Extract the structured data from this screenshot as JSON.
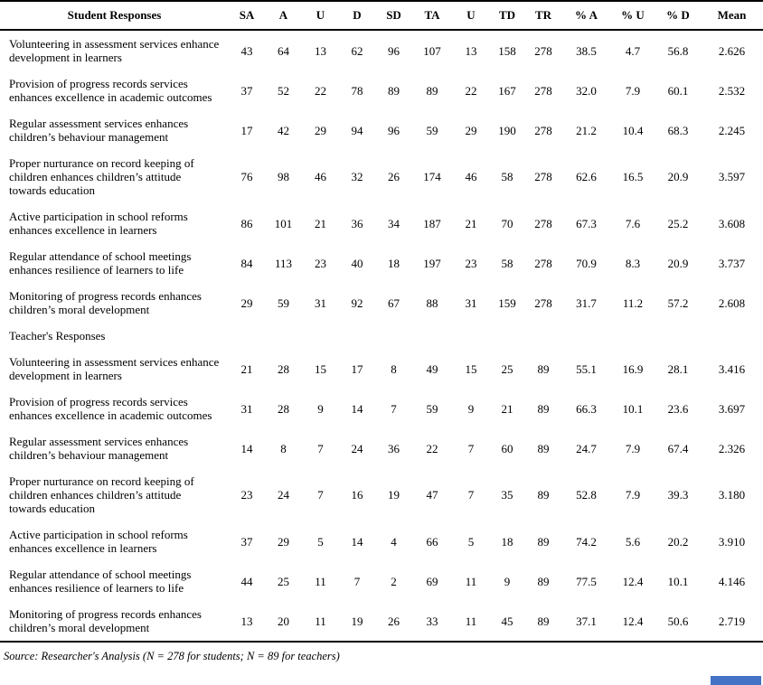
{
  "table": {
    "columns": [
      "Student Responses",
      "SA",
      "A",
      "U",
      "D",
      "SD",
      "TA",
      "U",
      "TD",
      "TR",
      "% A",
      "% U",
      "% D",
      "Mean"
    ],
    "rows": [
      {
        "type": "data",
        "statement": "Volunteering in assessment services enhance development in learners",
        "values": [
          "43",
          "64",
          "13",
          "62",
          "96",
          "107",
          "13",
          "158",
          "278",
          "38.5",
          "4.7",
          "56.8",
          "2.626"
        ]
      },
      {
        "type": "data",
        "statement": "Provision of progress records services enhances excellence in academic outcomes",
        "values": [
          "37",
          "52",
          "22",
          "78",
          "89",
          "89",
          "22",
          "167",
          "278",
          "32.0",
          "7.9",
          "60.1",
          "2.532"
        ]
      },
      {
        "type": "data",
        "statement": "Regular assessment services enhances children’s behaviour management",
        "values": [
          "17",
          "42",
          "29",
          "94",
          "96",
          "59",
          "29",
          "190",
          "278",
          "21.2",
          "10.4",
          "68.3",
          "2.245"
        ]
      },
      {
        "type": "data",
        "statement": "Proper nurturance on record keeping of children enhances children’s attitude towards education",
        "values": [
          "76",
          "98",
          "46",
          "32",
          "26",
          "174",
          "46",
          "58",
          "278",
          "62.6",
          "16.5",
          "20.9",
          "3.597"
        ]
      },
      {
        "type": "data",
        "statement": "Active participation in school reforms enhances excellence in learners",
        "values": [
          "86",
          "101",
          "21",
          "36",
          "34",
          "187",
          "21",
          "70",
          "278",
          "67.3",
          "7.6",
          "25.2",
          "3.608"
        ]
      },
      {
        "type": "data",
        "statement": "Regular attendance of school meetings enhances resilience of learners to life",
        "values": [
          "84",
          "113",
          "23",
          "40",
          "18",
          "197",
          "23",
          "58",
          "278",
          "70.9",
          "8.3",
          "20.9",
          "3.737"
        ]
      },
      {
        "type": "data",
        "statement": "Monitoring of progress records enhances children’s moral development",
        "values": [
          "29",
          "59",
          "31",
          "92",
          "67",
          "88",
          "31",
          "159",
          "278",
          "31.7",
          "11.2",
          "57.2",
          "2.608"
        ]
      },
      {
        "type": "section",
        "label": "Teacher's Responses"
      },
      {
        "type": "data",
        "statement": "Volunteering in assessment services enhance development in learners",
        "values": [
          "21",
          "28",
          "15",
          "17",
          "8",
          "49",
          "15",
          "25",
          "89",
          "55.1",
          "16.9",
          "28.1",
          "3.416"
        ]
      },
      {
        "type": "data",
        "statement": "Provision of progress records services enhances excellence in academic outcomes",
        "values": [
          "31",
          "28",
          "9",
          "14",
          "7",
          "59",
          "9",
          "21",
          "89",
          "66.3",
          "10.1",
          "23.6",
          "3.697"
        ]
      },
      {
        "type": "data",
        "statement": "Regular assessment services enhances children’s behaviour management",
        "values": [
          "14",
          "8",
          "7",
          "24",
          "36",
          "22",
          "7",
          "60",
          "89",
          "24.7",
          "7.9",
          "67.4",
          "2.326"
        ]
      },
      {
        "type": "data",
        "statement": "Proper nurturance on record keeping of children enhances children’s attitude towards education",
        "values": [
          "23",
          "24",
          "7",
          "16",
          "19",
          "47",
          "7",
          "35",
          "89",
          "52.8",
          "7.9",
          "39.3",
          "3.180"
        ]
      },
      {
        "type": "data",
        "statement": "Active participation in school reforms enhances excellence in learners",
        "values": [
          "37",
          "29",
          "5",
          "14",
          "4",
          "66",
          "5",
          "18",
          "89",
          "74.2",
          "5.6",
          "20.2",
          "3.910"
        ]
      },
      {
        "type": "data",
        "statement": "Regular attendance of school meetings enhances resilience of learners to life",
        "values": [
          "44",
          "25",
          "11",
          "7",
          "2",
          "69",
          "11",
          "9",
          "89",
          "77.5",
          "12.4",
          "10.1",
          "4.146"
        ]
      },
      {
        "type": "data",
        "statement": "Monitoring of progress records enhances children’s moral development",
        "values": [
          "13",
          "20",
          "11",
          "19",
          "26",
          "33",
          "11",
          "45",
          "89",
          "37.1",
          "12.4",
          "50.6",
          "2.719"
        ]
      }
    ]
  },
  "footer": {
    "source_note": "Source: Researcher's Analysis (N = 278 for students; N = 89 for teachers)"
  },
  "colors": {
    "text": "#000000",
    "border": "#000000",
    "background": "#ffffff",
    "corner_marker": "#4472c4"
  }
}
